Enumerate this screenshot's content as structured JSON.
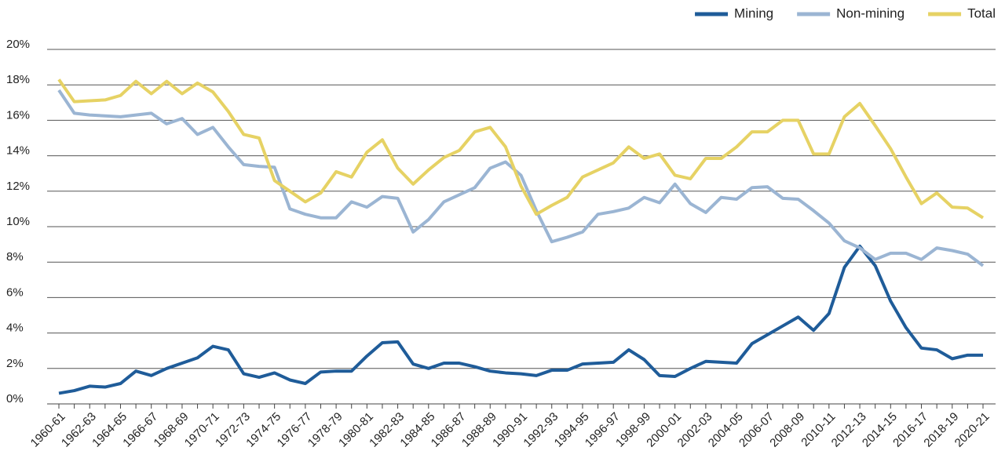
{
  "chart_data": {
    "type": "line",
    "categories": [
      "1960-61",
      null,
      "1962-63",
      null,
      "1964-65",
      null,
      "1966-67",
      null,
      "1968-69",
      null,
      "1970-71",
      null,
      "1972-73",
      null,
      "1974-75",
      null,
      "1976-77",
      null,
      "1978-79",
      null,
      "1980-81",
      null,
      "1982-83",
      null,
      "1984-85",
      null,
      "1986-87",
      null,
      "1988-89",
      null,
      "1990-91",
      null,
      "1992-93",
      null,
      "1994-95",
      null,
      "1996-97",
      null,
      "1998-99",
      null,
      "2000-01",
      null,
      "2002-03",
      null,
      "2004-05",
      null,
      "2006-07",
      null,
      "2008-09",
      null,
      "2010-11",
      null,
      "2012-13",
      null,
      "2014-15",
      null,
      "2016-17",
      null,
      "2018-19",
      null,
      "2020-21"
    ],
    "series": [
      {
        "name": "Mining",
        "color": "#1f5c99",
        "values": [
          0.6,
          0.75,
          1.0,
          0.95,
          1.15,
          1.85,
          1.6,
          2.0,
          2.3,
          2.6,
          3.25,
          3.05,
          1.7,
          1.5,
          1.75,
          1.35,
          1.15,
          1.8,
          1.85,
          1.85,
          2.7,
          3.45,
          3.5,
          2.25,
          2.0,
          2.3,
          2.3,
          2.1,
          1.85,
          1.75,
          1.7,
          1.6,
          1.9,
          1.9,
          2.25,
          2.3,
          2.35,
          3.05,
          2.5,
          1.6,
          1.55,
          2.0,
          2.4,
          2.35,
          2.3,
          3.4,
          3.9,
          4.4,
          4.9,
          4.15,
          5.1,
          7.7,
          8.9,
          7.8,
          5.8,
          4.3,
          3.15,
          3.05,
          2.55,
          2.75,
          2.75
        ]
      },
      {
        "name": "Non-mining",
        "color": "#9bb5d3",
        "values": [
          17.7,
          16.4,
          16.3,
          16.25,
          16.2,
          16.3,
          16.4,
          15.8,
          16.1,
          15.2,
          15.6,
          14.5,
          13.5,
          13.4,
          13.35,
          11.0,
          10.7,
          10.5,
          10.5,
          11.4,
          11.1,
          11.7,
          11.6,
          9.7,
          10.4,
          11.4,
          11.8,
          12.2,
          13.3,
          13.65,
          12.9,
          10.9,
          9.15,
          9.4,
          9.7,
          10.7,
          10.85,
          11.05,
          11.65,
          11.35,
          12.4,
          11.3,
          10.8,
          11.65,
          11.55,
          12.2,
          12.25,
          11.6,
          11.55,
          10.9,
          10.2,
          9.2,
          8.8,
          8.15,
          8.5,
          8.5,
          8.15,
          8.8,
          8.65,
          8.45,
          7.8
        ]
      },
      {
        "name": "Total",
        "color": "#e6d264",
        "values": [
          18.3,
          17.05,
          17.1,
          17.15,
          17.4,
          18.2,
          17.5,
          18.2,
          17.5,
          18.1,
          17.6,
          16.5,
          15.2,
          15.0,
          12.6,
          12.0,
          11.4,
          11.9,
          13.1,
          12.8,
          14.2,
          14.9,
          13.3,
          12.4,
          13.2,
          13.9,
          14.3,
          15.35,
          15.6,
          14.5,
          12.3,
          10.7,
          11.2,
          11.65,
          12.8,
          13.2,
          13.6,
          14.5,
          13.85,
          14.1,
          12.9,
          12.7,
          13.85,
          13.85,
          14.5,
          15.35,
          15.35,
          16.0,
          16.0,
          14.1,
          14.1,
          16.2,
          16.95,
          15.7,
          14.4,
          12.8,
          11.3,
          11.9,
          11.1,
          11.05,
          10.5
        ]
      }
    ],
    "ylim": [
      0,
      20
    ],
    "yticks": [
      {
        "value": 0,
        "label": "0%"
      },
      {
        "value": 2,
        "label": "2%"
      },
      {
        "value": 4,
        "label": "4%"
      },
      {
        "value": 6,
        "label": "6%"
      },
      {
        "value": 8,
        "label": "8%"
      },
      {
        "value": 10,
        "label": "10%"
      },
      {
        "value": 12,
        "label": "12%"
      },
      {
        "value": 14,
        "label": "14%"
      },
      {
        "value": 16,
        "label": "16%"
      },
      {
        "value": 18,
        "label": "18%"
      },
      {
        "value": 20,
        "label": "20%"
      }
    ],
    "grid": true,
    "legend": "top-right"
  }
}
